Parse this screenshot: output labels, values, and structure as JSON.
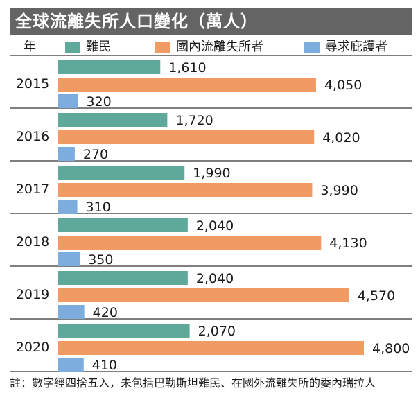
{
  "title": "全球流離失所人口變化（萬人）",
  "legend": {
    "year_label": "年",
    "items": [
      {
        "name": "難民",
        "color": "#5fa99a"
      },
      {
        "name": "國內流離失所者",
        "color": "#f19a63"
      },
      {
        "name": "尋求庇護者",
        "color": "#7dadde"
      }
    ]
  },
  "footnote": "註：數字經四捨五入，未包括巴勒斯坦難民、在國外流離失所的委內瑞拉人",
  "chart_data": {
    "type": "bar",
    "orientation": "horizontal",
    "title": "全球流離失所人口變化（萬人）",
    "categories": [
      "2015",
      "2016",
      "2017",
      "2018",
      "2019",
      "2020"
    ],
    "series": [
      {
        "name": "難民",
        "color": "#5fa99a",
        "values": [
          1610,
          1720,
          1990,
          2040,
          2040,
          2070
        ],
        "labels": [
          "1,610",
          "1,720",
          "1,990",
          "2,040",
          "2,040",
          "2,070"
        ]
      },
      {
        "name": "國內流離失所者",
        "color": "#f19a63",
        "values": [
          4050,
          4020,
          3990,
          4130,
          4570,
          4800
        ],
        "labels": [
          "4,050",
          "4,020",
          "3,990",
          "4,130",
          "4,570",
          "4,800"
        ]
      },
      {
        "name": "尋求庇護者",
        "color": "#7dadde",
        "values": [
          320,
          270,
          310,
          350,
          420,
          410
        ],
        "labels": [
          "320",
          "270",
          "310",
          "350",
          "420",
          "410"
        ]
      }
    ],
    "xlim": [
      0,
      4800
    ],
    "grid": false,
    "legend_position": "top"
  }
}
